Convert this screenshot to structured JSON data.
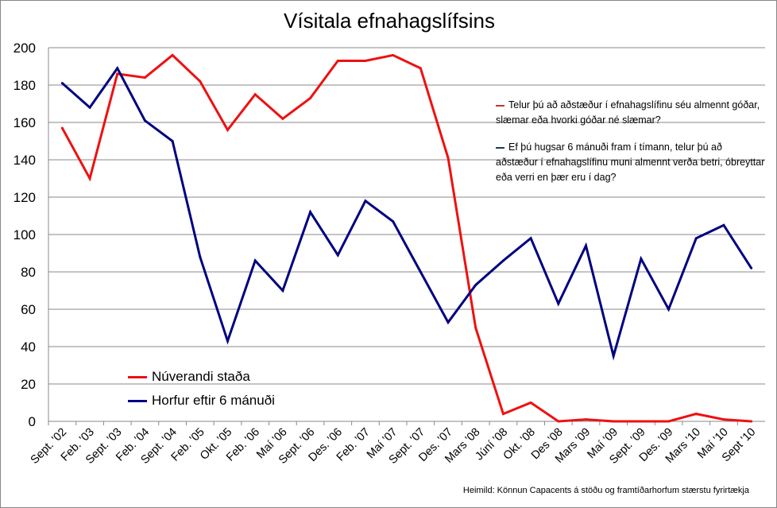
{
  "chart_data": {
    "type": "line",
    "title": "Vísitala efnahagslífsins",
    "categories": [
      "Sept. '02",
      "Feb. '03",
      "Sept. '03",
      "Feb. '04",
      "Sept. '04",
      "Feb. '05",
      "Okt. '05",
      "Feb. '06",
      "Maí '06",
      "Sept. '06",
      "Des. '06",
      "Feb. '07",
      "Maí '07",
      "Sept. '07",
      "Des. '07",
      "Mars '08",
      "Júní '08",
      "Okt. '08",
      "Des '08",
      "Mars '09",
      "Maí '09",
      "Sept. '09",
      "Des. '09",
      "Mars '10",
      "Maí '10",
      "Sept '10"
    ],
    "series": [
      {
        "name": "Núverandi staða",
        "color": "#ee1111",
        "values": [
          157,
          130,
          186,
          184,
          196,
          182,
          156,
          175,
          162,
          173,
          193,
          193,
          196,
          189,
          141,
          50,
          4,
          10,
          0,
          1,
          0,
          0,
          0,
          4,
          1,
          0
        ]
      },
      {
        "name": "Horfur eftir 6 mánuði",
        "color": "#000080",
        "values": [
          181,
          168,
          189,
          161,
          150,
          88,
          43,
          86,
          70,
          112,
          89,
          118,
          107,
          80,
          53,
          73,
          86,
          98,
          63,
          94,
          35,
          87,
          60,
          98,
          105,
          82
        ]
      }
    ],
    "ylim": [
      0,
      200
    ],
    "yticks": [
      0,
      20,
      40,
      60,
      80,
      100,
      120,
      140,
      160,
      180,
      200
    ],
    "grid": true,
    "legend_placement": "bottom-left",
    "annotations": [
      "Telur þú að aðstæður í efnahagslífinu séu almennt góðar, slæmar eða hvorki góðar né slæmar?",
      "Ef þú hugsar 6 mánuði fram í tímann, telur þú að aðstæður í efnahagslífinu muni almennt verða betri, óbreyttar eða verri en þær eru í dag?"
    ],
    "source": "Heimild: Könnun Capacents á stöðu og framtíðarhorfum stærstu fyrirtækja"
  }
}
